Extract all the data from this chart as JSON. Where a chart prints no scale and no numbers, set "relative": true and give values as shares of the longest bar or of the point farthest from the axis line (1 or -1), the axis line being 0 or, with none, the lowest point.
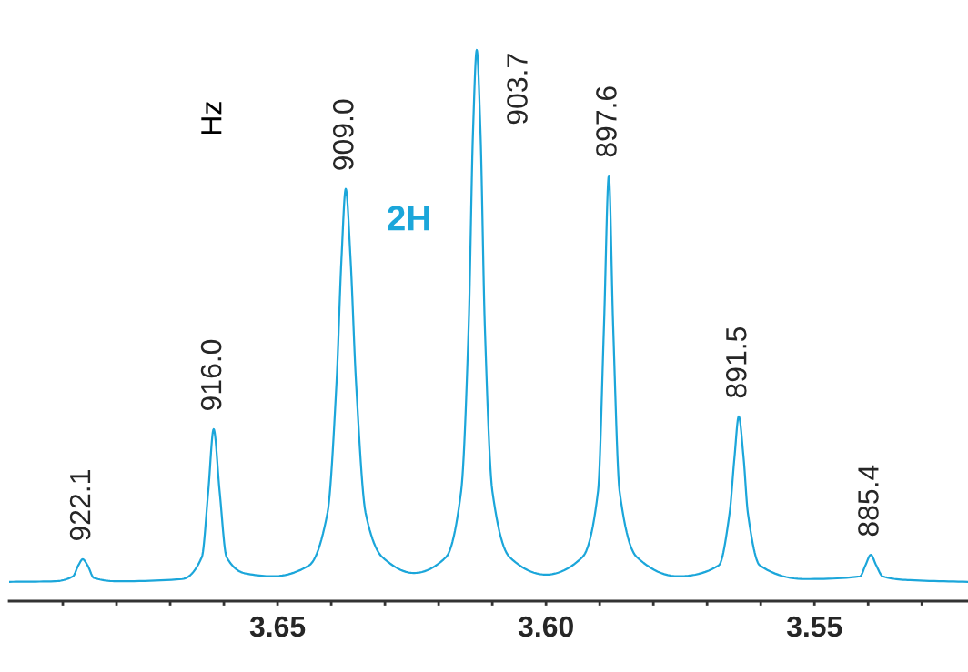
{
  "chart_data": {
    "type": "line",
    "relative": true,
    "color": "#1ba6da",
    "x": [
      3.7,
      3.6915,
      3.6881,
      3.6871,
      3.6863,
      3.6854,
      3.6842,
      3.6797,
      3.6678,
      3.6641,
      3.6629,
      3.6619,
      3.6608,
      3.6595,
      3.6559,
      3.6508,
      3.6441,
      3.6407,
      3.639,
      3.6381,
      3.6373,
      3.6364,
      3.6354,
      3.6336,
      3.6305,
      3.6246,
      3.6186,
      3.6158,
      3.6144,
      3.6136,
      3.6129,
      3.6122,
      3.6114,
      3.61,
      3.6068,
      3.6,
      3.5932,
      3.5903,
      3.5892,
      3.5883,
      3.5875,
      3.5863,
      3.5831,
      3.5754,
      3.5678,
      3.5658,
      3.5649,
      3.5641,
      3.5632,
      3.5624,
      3.5602,
      3.5517,
      3.5415,
      3.5405,
      3.5395,
      3.5385,
      3.5373,
      3.5322,
      3.5214
    ],
    "values": [
      0.035,
      0.036,
      0.045,
      0.065,
      0.076,
      0.065,
      0.042,
      0.036,
      0.04,
      0.08,
      0.2,
      0.312,
      0.2,
      0.08,
      0.05,
      0.045,
      0.065,
      0.16,
      0.4,
      0.62,
      0.748,
      0.62,
      0.4,
      0.16,
      0.08,
      0.051,
      0.08,
      0.2,
      0.5,
      0.85,
      1,
      0.85,
      0.5,
      0.2,
      0.08,
      0.048,
      0.08,
      0.2,
      0.5,
      0.772,
      0.5,
      0.2,
      0.08,
      0.045,
      0.065,
      0.16,
      0.26,
      0.335,
      0.26,
      0.16,
      0.065,
      0.04,
      0.045,
      0.065,
      0.084,
      0.065,
      0.045,
      0.038,
      0.035
    ],
    "xlim": [
      3.7,
      3.5214
    ],
    "xticks": [
      {
        "value": 3.69,
        "label": null
      },
      {
        "value": 3.68,
        "label": null
      },
      {
        "value": 3.67,
        "label": null
      },
      {
        "value": 3.66,
        "label": null
      },
      3.65,
      {
        "value": 3.64,
        "label": null
      },
      {
        "value": 3.63,
        "label": null
      },
      {
        "value": 3.62,
        "label": null
      },
      {
        "value": 3.61,
        "label": null
      },
      {
        "value": 3.6,
        "label": "3.60"
      },
      {
        "value": 3.59,
        "label": null
      },
      {
        "value": 3.58,
        "label": null
      },
      {
        "value": 3.57,
        "label": null
      },
      {
        "value": 3.56,
        "label": null
      },
      3.55,
      {
        "value": 3.54,
        "label": null
      },
      {
        "value": 3.53,
        "label": null
      }
    ],
    "grid": false,
    "legend": false,
    "annotations": [
      {
        "text": "922.1",
        "x": 3.6863,
        "y": 0.076
      },
      {
        "text": "916.0",
        "x": 3.6619,
        "y": 0.312
      },
      {
        "text": "909.0",
        "x": 3.6373,
        "y": 0.748
      },
      {
        "text": "903.7",
        "x": 3.6129,
        "y": 1
      },
      {
        "text": "897.6",
        "x": 3.5883,
        "y": 0.772
      },
      {
        "text": "891.5",
        "x": 3.5641,
        "y": 0.335
      },
      {
        "text": "885.4",
        "x": 3.5395,
        "y": 0.084
      },
      "Hz",
      "2H"
    ]
  }
}
